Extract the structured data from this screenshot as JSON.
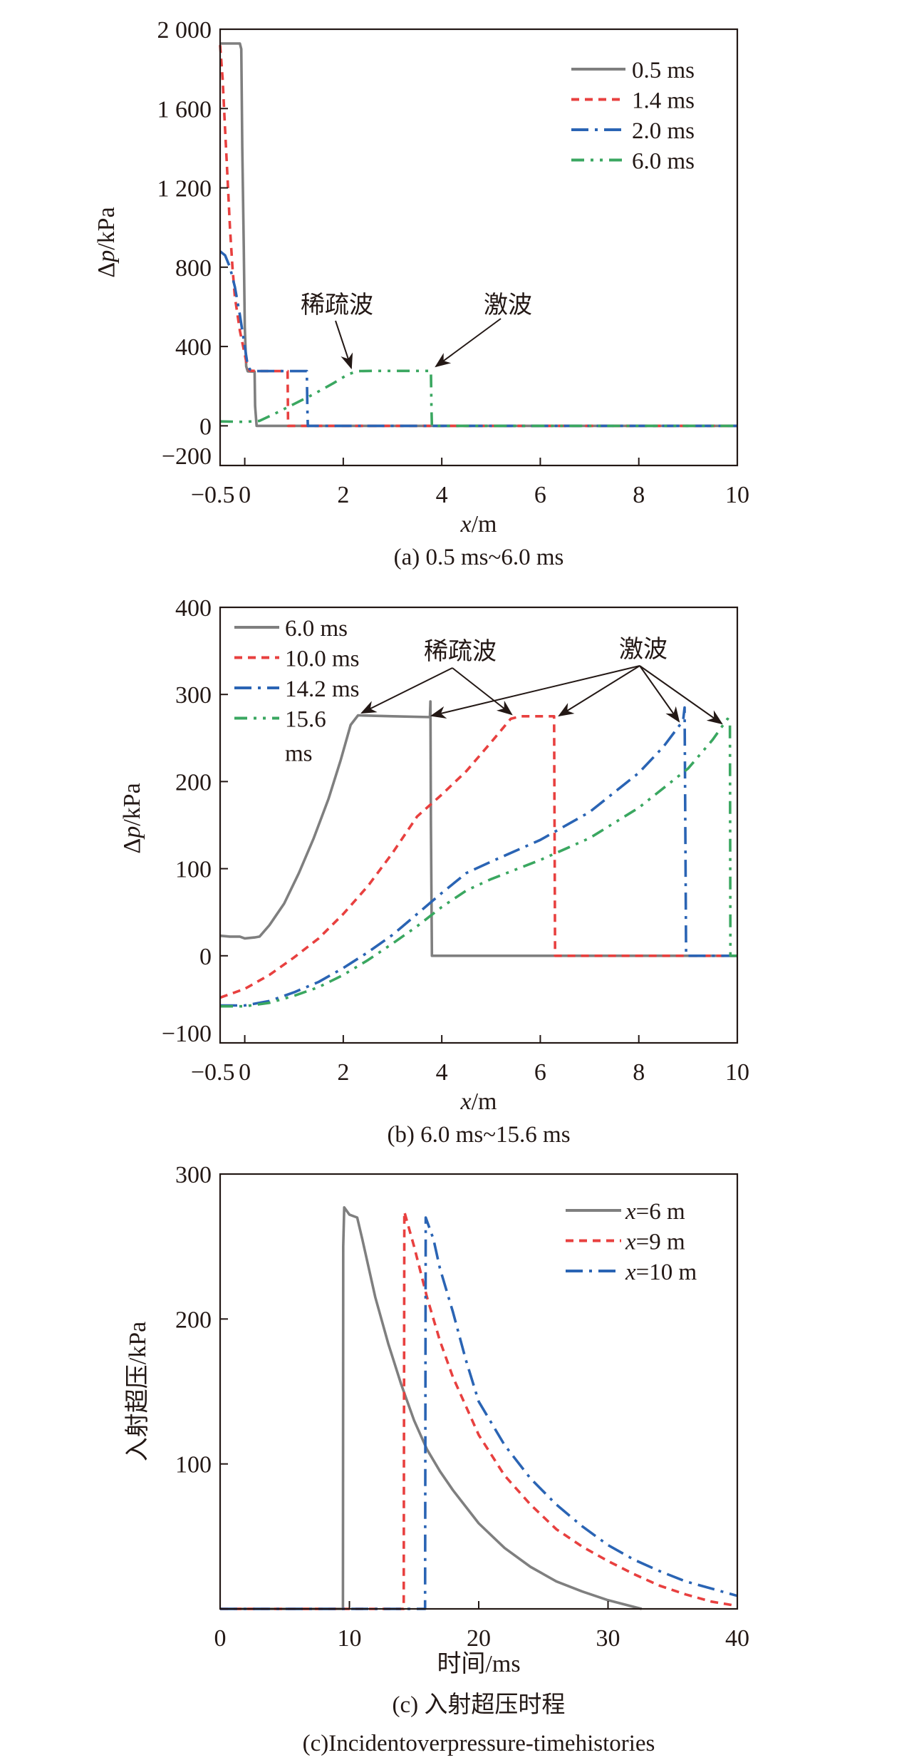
{
  "chart_data": [
    {
      "id": "a",
      "type": "line",
      "title": "",
      "caption": "(a) 0.5 ms~6.0 ms",
      "xlabel_italic": "x",
      "xlabel_rest": "/m",
      "ylabel_prefix": "Δ",
      "ylabel_italic": "p",
      "ylabel_rest": "/kPa",
      "xlim": [
        -0.5,
        10
      ],
      "ylim": [
        -200,
        2000
      ],
      "xticks": [
        -0.5,
        0,
        2,
        4,
        6,
        8,
        10
      ],
      "xtick_labels": [
        "−0.5",
        "0",
        "2",
        "4",
        "6",
        "8",
        "10"
      ],
      "yticks": [
        -200,
        0,
        400,
        800,
        1200,
        1600,
        2000
      ],
      "ytick_labels": [
        "−200",
        "0",
        "400",
        "800",
        "1 200",
        "1 600",
        "2 000"
      ],
      "grid": false,
      "legend_position": "top-right",
      "series": [
        {
          "name": "0.5 ms",
          "color": "#7f7f7f",
          "style": "solid",
          "points": [
            [
              -0.5,
              1928
            ],
            [
              -0.1,
              1928
            ],
            [
              -0.07,
              1900
            ],
            [
              -0.05,
              1400
            ],
            [
              -0.02,
              900
            ],
            [
              0.0,
              500
            ],
            [
              0.03,
              300
            ],
            [
              0.06,
              275
            ],
            [
              0.2,
              273
            ],
            [
              0.21,
              100
            ],
            [
              0.24,
              0
            ],
            [
              10,
              0
            ]
          ]
        },
        {
          "name": "1.4 ms",
          "color": "#e8403f",
          "style": "dash",
          "points": [
            [
              -0.5,
              1920
            ],
            [
              -0.45,
              1750
            ],
            [
              -0.4,
              1500
            ],
            [
              -0.35,
              1250
            ],
            [
              -0.3,
              1000
            ],
            [
              -0.25,
              800
            ],
            [
              -0.2,
              650
            ],
            [
              -0.1,
              480
            ],
            [
              0.0,
              360
            ],
            [
              0.05,
              300
            ],
            [
              0.1,
              278
            ],
            [
              0.3,
              276
            ],
            [
              0.87,
              276
            ],
            [
              0.88,
              0
            ],
            [
              10,
              0
            ]
          ]
        },
        {
          "name": "2.0 ms",
          "color": "#2a64b4",
          "style": "dashdot",
          "points": [
            [
              -0.5,
              880
            ],
            [
              -0.4,
              860
            ],
            [
              -0.3,
              800
            ],
            [
              -0.2,
              700
            ],
            [
              -0.1,
              560
            ],
            [
              -0.05,
              480
            ],
            [
              0.0,
              400
            ],
            [
              0.05,
              320
            ],
            [
              0.1,
              285
            ],
            [
              0.2,
              276
            ],
            [
              1.26,
              276
            ],
            [
              1.27,
              100
            ],
            [
              1.28,
              0
            ],
            [
              10,
              0
            ]
          ]
        },
        {
          "name": "6.0 ms",
          "color": "#3aa760",
          "style": "dashdotdot",
          "points": [
            [
              -0.5,
              22
            ],
            [
              0.0,
              20
            ],
            [
              0.3,
              25
            ],
            [
              0.6,
              60
            ],
            [
              1.0,
              110
            ],
            [
              1.4,
              160
            ],
            [
              1.8,
              215
            ],
            [
              2.1,
              260
            ],
            [
              2.3,
              276
            ],
            [
              2.6,
              277
            ],
            [
              3.78,
              277
            ],
            [
              3.79,
              100
            ],
            [
              3.8,
              0
            ],
            [
              10,
              0
            ]
          ]
        }
      ],
      "annotations": [
        {
          "text": "稀疏波",
          "target_x": 2.25,
          "target_y": 285
        },
        {
          "text": "激波",
          "target_x": 3.85,
          "target_y": 295
        }
      ]
    },
    {
      "id": "b",
      "type": "line",
      "title": "",
      "caption": "(b) 6.0 ms~15.6 ms",
      "xlabel_italic": "x",
      "xlabel_rest": "/m",
      "ylabel_prefix": "Δ",
      "ylabel_italic": "p",
      "ylabel_rest": "/kPa",
      "xlim": [
        -0.5,
        10
      ],
      "ylim": [
        -100,
        400
      ],
      "xticks": [
        -0.5,
        0,
        2,
        4,
        6,
        8,
        10
      ],
      "xtick_labels": [
        "−0.5",
        "0",
        "2",
        "4",
        "6",
        "8",
        "10"
      ],
      "yticks": [
        -100,
        0,
        100,
        200,
        300,
        400
      ],
      "ytick_labels": [
        "−100",
        "0",
        "100",
        "200",
        "300",
        "400"
      ],
      "grid": false,
      "legend_position": "top-left",
      "series": [
        {
          "name": "6.0 ms",
          "name_line1": "6.0 ms",
          "name_line2": "",
          "color": "#7f7f7f",
          "style": "solid",
          "points": [
            [
              -0.5,
              23
            ],
            [
              -0.3,
              22
            ],
            [
              -0.1,
              22
            ],
            [
              0.0,
              20
            ],
            [
              0.2,
              21
            ],
            [
              0.3,
              22
            ],
            [
              0.5,
              35
            ],
            [
              0.8,
              60
            ],
            [
              1.1,
              95
            ],
            [
              1.4,
              135
            ],
            [
              1.7,
              180
            ],
            [
              1.95,
              225
            ],
            [
              2.15,
              265
            ],
            [
              2.3,
              276
            ],
            [
              3.0,
              275
            ],
            [
              3.76,
              274
            ],
            [
              3.77,
              292
            ],
            [
              3.78,
              150
            ],
            [
              3.8,
              0
            ],
            [
              10,
              0
            ]
          ]
        },
        {
          "name": "10.0 ms",
          "name_line1": "10.0 ms",
          "name_line2": "",
          "color": "#e8403f",
          "style": "dash",
          "points": [
            [
              -0.5,
              -48
            ],
            [
              0.0,
              -38
            ],
            [
              0.5,
              -22
            ],
            [
              1.0,
              -2
            ],
            [
              1.5,
              20
            ],
            [
              2.0,
              48
            ],
            [
              2.5,
              80
            ],
            [
              3.0,
              118
            ],
            [
              3.5,
              160
            ],
            [
              4.0,
              185
            ],
            [
              4.5,
              212
            ],
            [
              5.0,
              245
            ],
            [
              5.4,
              272
            ],
            [
              5.6,
              275
            ],
            [
              6.28,
              275
            ],
            [
              6.3,
              0
            ],
            [
              10,
              0
            ]
          ]
        },
        {
          "name": "14.2 ms",
          "name_line1": "14.2 ms",
          "name_line2": "",
          "color": "#2a64b4",
          "style": "dashdot",
          "points": [
            [
              -0.5,
              -57
            ],
            [
              0.0,
              -57
            ],
            [
              0.5,
              -52
            ],
            [
              1.0,
              -42
            ],
            [
              1.5,
              -30
            ],
            [
              2.0,
              -14
            ],
            [
              2.5,
              4
            ],
            [
              3.0,
              24
            ],
            [
              3.5,
              48
            ],
            [
              4.0,
              72
            ],
            [
              4.5,
              95
            ],
            [
              5.0,
              108
            ],
            [
              6.0,
              133
            ],
            [
              7.0,
              165
            ],
            [
              8.0,
              210
            ],
            [
              8.5,
              240
            ],
            [
              8.9,
              270
            ],
            [
              8.93,
              285
            ],
            [
              8.96,
              0
            ],
            [
              10,
              0
            ]
          ]
        },
        {
          "name": "15.6 ms",
          "name_line1": "15.6",
          "name_line2": "ms",
          "color": "#3aa760",
          "style": "dashdotdot",
          "points": [
            [
              -0.5,
              -58
            ],
            [
              0.0,
              -58
            ],
            [
              0.5,
              -54
            ],
            [
              1.0,
              -46
            ],
            [
              1.5,
              -36
            ],
            [
              2.0,
              -22
            ],
            [
              2.5,
              -5
            ],
            [
              3.0,
              14
            ],
            [
              3.5,
              34
            ],
            [
              4.0,
              56
            ],
            [
              4.5,
              75
            ],
            [
              5.0,
              88
            ],
            [
              6.0,
              110
            ],
            [
              7.0,
              135
            ],
            [
              8.0,
              170
            ],
            [
              9.0,
              215
            ],
            [
              9.5,
              248
            ],
            [
              9.8,
              272
            ],
            [
              9.85,
              270
            ],
            [
              9.86,
              0
            ],
            [
              10,
              0
            ]
          ]
        }
      ],
      "annotations": [
        {
          "text": "稀疏波",
          "targets": [
            [
              2.3,
              278
            ],
            [
              5.5,
              277
            ]
          ]
        },
        {
          "text": "激波",
          "targets": [
            [
              3.8,
              276
            ],
            [
              6.35,
              277
            ],
            [
              8.9,
              268
            ],
            [
              9.75,
              266
            ]
          ]
        }
      ]
    },
    {
      "id": "c",
      "type": "line",
      "title": "",
      "caption": "(c) 入射超压时程",
      "caption_en": "(c)Incidentoverpressure-timehistories",
      "xlabel": "时间/ms",
      "ylabel": "入射超压/kPa",
      "xlim": [
        0,
        40
      ],
      "ylim": [
        0,
        300
      ],
      "xticks": [
        0,
        10,
        20,
        30,
        40
      ],
      "xtick_labels": [
        "0",
        "10",
        "20",
        "30",
        "40"
      ],
      "yticks": [
        100,
        200,
        300
      ],
      "ytick_labels": [
        "100",
        "200",
        "300"
      ],
      "grid": false,
      "legend_position": "top-right",
      "series": [
        {
          "name_italic": "x",
          "name_rest": "=6 m",
          "color": "#7f7f7f",
          "style": "solid",
          "points": [
            [
              0,
              0
            ],
            [
              9.5,
              0
            ],
            [
              9.52,
              250
            ],
            [
              9.6,
              277
            ],
            [
              10.0,
              272
            ],
            [
              10.6,
              270
            ],
            [
              11.0,
              255
            ],
            [
              12.0,
              215
            ],
            [
              13.0,
              183
            ],
            [
              14.0,
              155
            ],
            [
              15.0,
              130
            ],
            [
              16.0,
              110
            ],
            [
              17.0,
              95
            ],
            [
              18.0,
              82
            ],
            [
              20.0,
              59
            ],
            [
              22.0,
              42
            ],
            [
              24.0,
              29
            ],
            [
              26.0,
              19
            ],
            [
              28.0,
              12
            ],
            [
              30.0,
              6
            ],
            [
              32.6,
              0
            ]
          ]
        },
        {
          "name_italic": "x",
          "name_rest": "=9 m",
          "color": "#e8403f",
          "style": "dash",
          "points": [
            [
              0,
              0
            ],
            [
              14.2,
              0
            ],
            [
              14.25,
              274
            ],
            [
              15.0,
              250
            ],
            [
              16.0,
              215
            ],
            [
              17.0,
              185
            ],
            [
              18.0,
              160
            ],
            [
              20.0,
              120
            ],
            [
              22.0,
              92
            ],
            [
              24.0,
              72
            ],
            [
              26.0,
              55
            ],
            [
              28.0,
              43
            ],
            [
              30.0,
              33
            ],
            [
              32.0,
              24
            ],
            [
              34.0,
              16
            ],
            [
              36.0,
              10
            ],
            [
              38.0,
              5
            ],
            [
              40.0,
              2
            ]
          ]
        },
        {
          "name_italic": "x",
          "name_rest": "=10 m",
          "color": "#2a64b4",
          "style": "dashdot",
          "points": [
            [
              0,
              0
            ],
            [
              15.85,
              0
            ],
            [
              15.9,
              270
            ],
            [
              16.5,
              255
            ],
            [
              17.0,
              235
            ],
            [
              18.0,
              205
            ],
            [
              19.0,
              172
            ],
            [
              20.0,
              143
            ],
            [
              22.0,
              113
            ],
            [
              24.0,
              90
            ],
            [
              26.0,
              72
            ],
            [
              28.0,
              57
            ],
            [
              30.0,
              44
            ],
            [
              32.0,
              34
            ],
            [
              34.0,
              26
            ],
            [
              36.0,
              19
            ],
            [
              38.0,
              14
            ],
            [
              40.0,
              9
            ]
          ]
        }
      ]
    }
  ]
}
